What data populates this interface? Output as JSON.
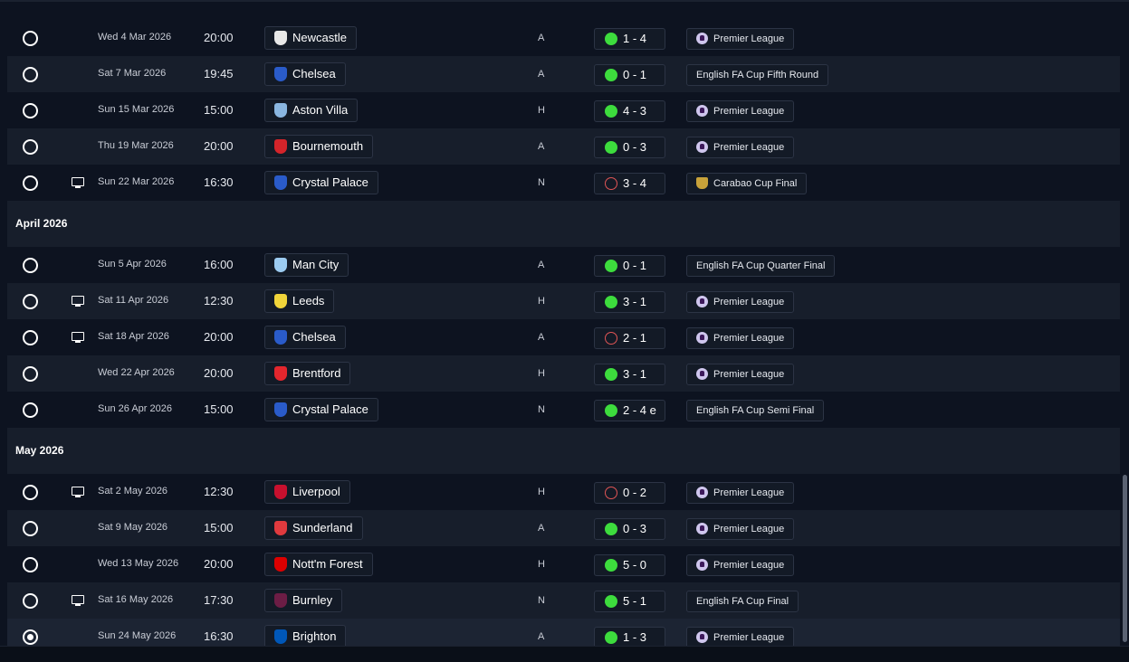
{
  "colors": {
    "win": "#3ddc3d",
    "loss": "#e05555",
    "row_alt": "#171e2b",
    "background": "#0d1320"
  },
  "groups": [
    {
      "month": "",
      "rows": [
        {
          "date": "Wed 4 Mar 2026",
          "time": "20:00",
          "team": "Newcastle",
          "badge_color": "#e8e8e8",
          "venue": "A",
          "outcome": "win",
          "score": "1 - 4",
          "competition": "Premier League",
          "comp_icon": "premier-league-icon",
          "tv": false,
          "alt": false
        },
        {
          "date": "Sat 7 Mar 2026",
          "time": "19:45",
          "team": "Chelsea",
          "badge_color": "#2a5bc9",
          "venue": "A",
          "outcome": "win",
          "score": "0 - 1",
          "competition": "English FA Cup Fifth Round",
          "comp_icon": "",
          "tv": false,
          "alt": true
        },
        {
          "date": "Sun 15 Mar 2026",
          "time": "15:00",
          "team": "Aston Villa",
          "badge_color": "#8ab6e0",
          "venue": "H",
          "outcome": "win",
          "score": "4 - 3",
          "competition": "Premier League",
          "comp_icon": "premier-league-icon",
          "tv": false,
          "alt": false
        },
        {
          "date": "Thu 19 Mar 2026",
          "time": "20:00",
          "team": "Bournemouth",
          "badge_color": "#d4242a",
          "venue": "A",
          "outcome": "win",
          "score": "0 - 3",
          "competition": "Premier League",
          "comp_icon": "premier-league-icon",
          "tv": false,
          "alt": true
        },
        {
          "date": "Sun 22 Mar 2026",
          "time": "16:30",
          "team": "Crystal Palace",
          "badge_color": "#2a5bc9",
          "venue": "N",
          "outcome": "loss",
          "score": "3 - 4",
          "competition": "Carabao Cup Final",
          "comp_icon": "carabao-cup-icon",
          "tv": true,
          "alt": false
        }
      ]
    },
    {
      "month": "April 2026",
      "rows": [
        {
          "date": "Sun 5 Apr 2026",
          "time": "16:00",
          "team": "Man City",
          "badge_color": "#9ccbf0",
          "venue": "A",
          "outcome": "win",
          "score": "0 - 1",
          "competition": "English FA Cup Quarter Final",
          "comp_icon": "",
          "tv": false,
          "alt": false
        },
        {
          "date": "Sat 11 Apr 2026",
          "time": "12:30",
          "team": "Leeds",
          "badge_color": "#f0d43a",
          "venue": "H",
          "outcome": "win",
          "score": "3 - 1",
          "competition": "Premier League",
          "comp_icon": "premier-league-icon",
          "tv": true,
          "alt": true
        },
        {
          "date": "Sat 18 Apr 2026",
          "time": "20:00",
          "team": "Chelsea",
          "badge_color": "#2a5bc9",
          "venue": "A",
          "outcome": "loss",
          "score": "2 - 1",
          "competition": "Premier League",
          "comp_icon": "premier-league-icon",
          "tv": true,
          "alt": false
        },
        {
          "date": "Wed 22 Apr 2026",
          "time": "20:00",
          "team": "Brentford",
          "badge_color": "#e3262d",
          "venue": "H",
          "outcome": "win",
          "score": "3 - 1",
          "competition": "Premier League",
          "comp_icon": "premier-league-icon",
          "tv": false,
          "alt": true
        },
        {
          "date": "Sun 26 Apr 2026",
          "time": "15:00",
          "team": "Crystal Palace",
          "badge_color": "#2a5bc9",
          "venue": "N",
          "outcome": "win",
          "score": "2 - 4 e",
          "competition": "English FA Cup Semi Final",
          "comp_icon": "",
          "tv": false,
          "alt": false
        }
      ]
    },
    {
      "month": "May 2026",
      "rows": [
        {
          "date": "Sat 2 May 2026",
          "time": "12:30",
          "team": "Liverpool",
          "badge_color": "#c8102e",
          "venue": "H",
          "outcome": "loss",
          "score": "0 - 2",
          "competition": "Premier League",
          "comp_icon": "premier-league-icon",
          "tv": true,
          "alt": false
        },
        {
          "date": "Sat 9 May 2026",
          "time": "15:00",
          "team": "Sunderland",
          "badge_color": "#e03a3e",
          "venue": "A",
          "outcome": "win",
          "score": "0 - 3",
          "competition": "Premier League",
          "comp_icon": "premier-league-icon",
          "tv": false,
          "alt": true
        },
        {
          "date": "Wed 13 May 2026",
          "time": "20:00",
          "team": "Nott'm Forest",
          "badge_color": "#dd0000",
          "venue": "H",
          "outcome": "win",
          "score": "5 - 0",
          "competition": "Premier League",
          "comp_icon": "premier-league-icon",
          "tv": false,
          "alt": false
        },
        {
          "date": "Sat 16 May 2026",
          "time": "17:30",
          "team": "Burnley",
          "badge_color": "#6c1d45",
          "venue": "N",
          "outcome": "win",
          "score": "5 - 1",
          "competition": "English FA Cup Final",
          "comp_icon": "",
          "tv": true,
          "alt": true
        },
        {
          "date": "Sun 24 May 2026",
          "time": "16:30",
          "team": "Brighton",
          "badge_color": "#0057b8",
          "venue": "A",
          "outcome": "win",
          "score": "1 - 3",
          "competition": "Premier League",
          "comp_icon": "premier-league-icon",
          "tv": false,
          "alt": false,
          "selected": true
        }
      ]
    }
  ]
}
